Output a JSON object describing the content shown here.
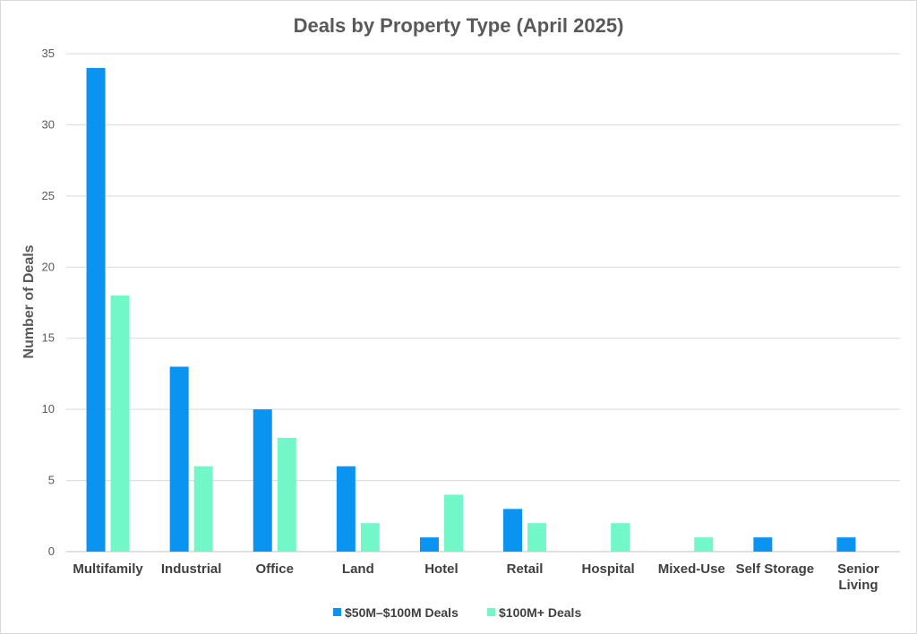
{
  "chart_data": {
    "type": "bar",
    "title": "Deals by Property Type (April 2025)",
    "xlabel": "",
    "ylabel": "Number of Deals",
    "ylim": [
      0,
      35
    ],
    "yticks": [
      0,
      5,
      10,
      15,
      20,
      25,
      30,
      35
    ],
    "grid": true,
    "legend_position": "bottom",
    "categories": [
      [
        "Multifamily"
      ],
      [
        "Industrial"
      ],
      [
        "Office"
      ],
      [
        "Land"
      ],
      [
        "Hotel"
      ],
      [
        "Retail"
      ],
      [
        "Hospital"
      ],
      [
        "Mixed-Use"
      ],
      [
        "Self Storage"
      ],
      [
        "Senior",
        "Living"
      ]
    ],
    "series": [
      {
        "name": "$50M–$100M Deals",
        "color": "#0a93f0",
        "values": [
          34,
          13,
          10,
          6,
          1,
          3,
          0,
          0,
          1,
          1
        ]
      },
      {
        "name": "$100M+ Deals",
        "color": "#72f7c9",
        "values": [
          18,
          6,
          8,
          2,
          4,
          2,
          2,
          1,
          0,
          0
        ]
      }
    ]
  }
}
